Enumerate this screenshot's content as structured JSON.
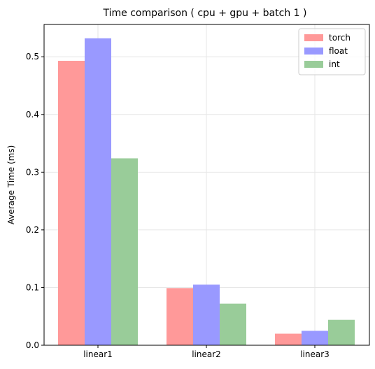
{
  "chart_data": {
    "type": "bar",
    "title": "Time comparison ( cpu + gpu + batch 1 )",
    "xlabel": "",
    "ylabel": "Average Time (ms)",
    "categories": [
      "linear1",
      "linear2",
      "linear3"
    ],
    "series": [
      {
        "name": "torch",
        "values": [
          0.493,
          0.099,
          0.02
        ],
        "color": "#ff9999"
      },
      {
        "name": "float",
        "values": [
          0.532,
          0.105,
          0.025
        ],
        "color": "#9999ff"
      },
      {
        "name": "int",
        "values": [
          0.324,
          0.072,
          0.044
        ],
        "color": "#99cc99"
      }
    ],
    "ylim": [
      0,
      0.556
    ],
    "yticks": [
      0.0,
      0.1,
      0.2,
      0.3,
      0.4,
      0.5
    ],
    "ytick_labels": [
      "0.0",
      "0.1",
      "0.2",
      "0.3",
      "0.4",
      "0.5"
    ],
    "grid": true,
    "legend_position": "top-right"
  }
}
